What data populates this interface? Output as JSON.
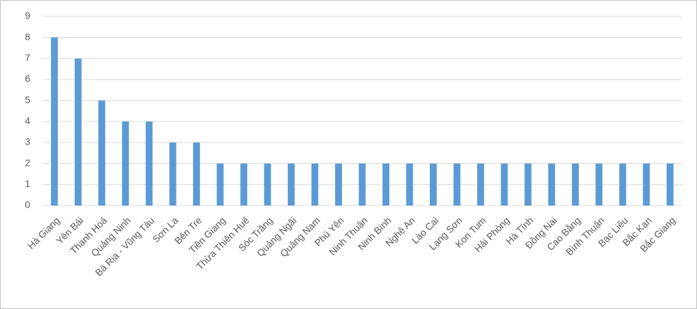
{
  "chart_data": {
    "type": "bar",
    "categories": [
      "Hà Giang",
      "Yên Bái",
      "Thanh Hoá",
      "Quảng Ninh",
      "Bà Rịa - Vũng Tàu",
      "Sơn La",
      "Bến Tre",
      "Tiền Giang",
      "Thừa Thiên Huế",
      "Sóc Trăng",
      "Quảng Ngãi",
      "Quảng Nam",
      "Phú Yên",
      "Ninh Thuận",
      "Ninh Bình",
      "Nghệ An",
      "Lào Cai",
      "Lạng Sơn",
      "Kon Tum",
      "Hải Phòng",
      "Hà Tĩnh",
      "Đồng Nai",
      "Cao Bằng",
      "Bình Thuận",
      "Bạc Liêu",
      "Bắc Kạn",
      "Bắc Giang"
    ],
    "values": [
      8,
      7,
      5,
      4,
      4,
      3,
      3,
      2,
      2,
      2,
      2,
      2,
      2,
      2,
      2,
      2,
      2,
      2,
      2,
      2,
      2,
      2,
      2,
      2,
      2,
      2,
      2
    ],
    "color": "#5b9bd5",
    "ylim": [
      0,
      9
    ],
    "yticks": [
      0,
      1,
      2,
      3,
      4,
      5,
      6,
      7,
      8,
      9
    ],
    "grid": true
  }
}
